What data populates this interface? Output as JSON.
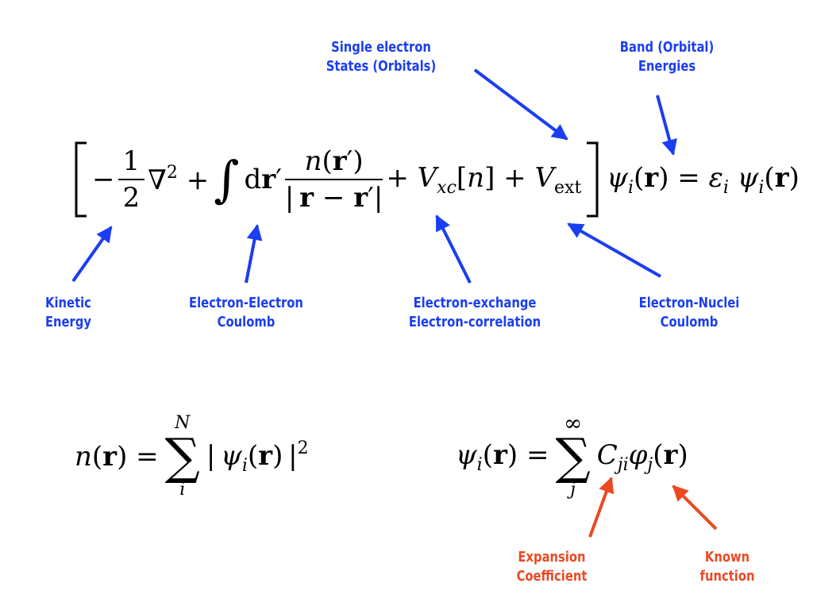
{
  "labels": {
    "single_electron": [
      "Single electron",
      "States (Orbitals)"
    ],
    "band_energies": [
      "Band (Orbital)",
      "Energies"
    ],
    "kinetic": [
      "Kinetic",
      "Energy"
    ],
    "ee_coulomb": [
      "Electron-Electron",
      "Coulomb"
    ],
    "xc": [
      "Electron-exchange",
      "Electron-correlation"
    ],
    "en_coulomb": [
      "Electron-Nuclei",
      "Coulomb"
    ],
    "expansion": [
      "Expansion",
      "Coefficient"
    ],
    "known": [
      "Known",
      "function"
    ]
  },
  "colors": {
    "annotation_blue": "#1a3ef0",
    "annotation_red": "#ea4a22",
    "equation": "#000000"
  }
}
